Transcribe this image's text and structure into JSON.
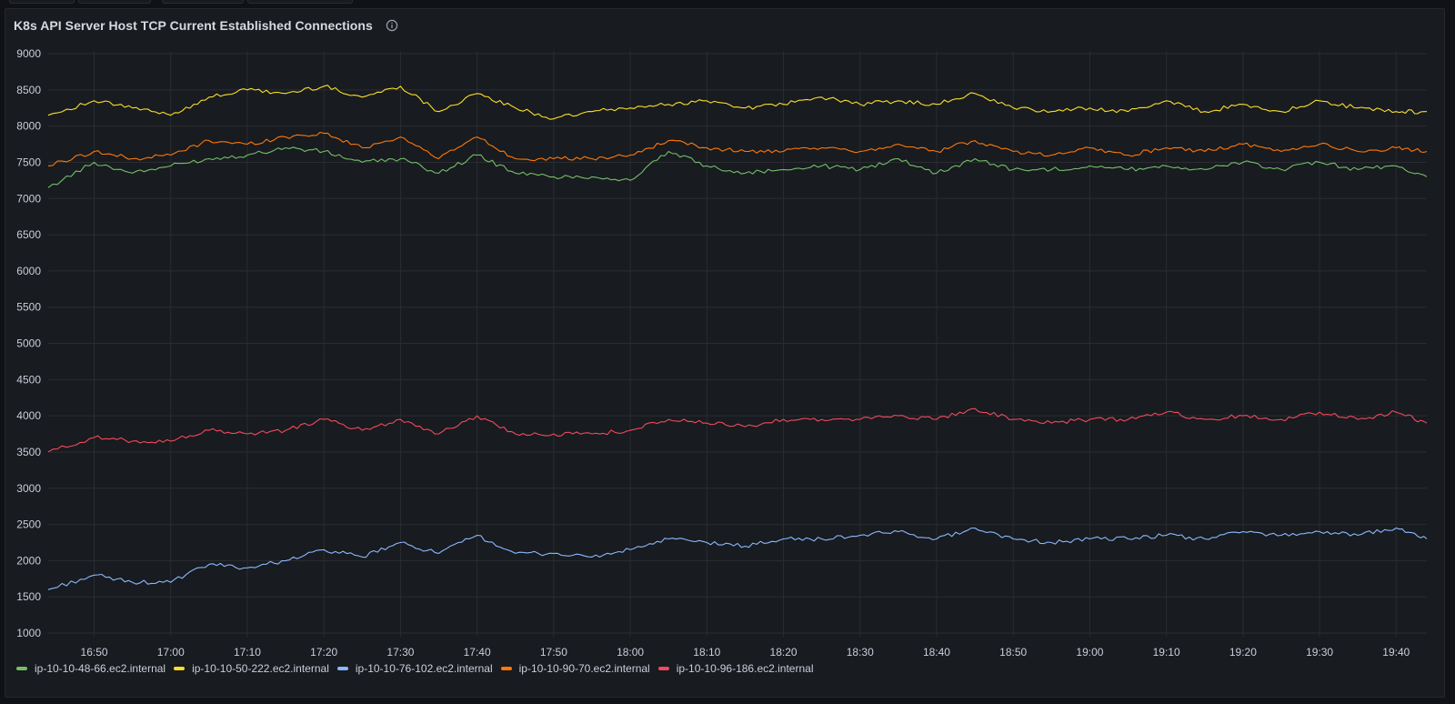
{
  "panel": {
    "title": "K8s API Server Host TCP Current Established Connections",
    "info_icon": "info-icon"
  },
  "chart_data": {
    "type": "line",
    "title": "K8s API Server Host TCP Current Established Connections",
    "xlabel": "",
    "ylabel": "",
    "x_range": [
      "16:44",
      "19:44"
    ],
    "ylim": [
      1000,
      9000
    ],
    "grid": true,
    "legend_position": "bottom-left",
    "yticks": [
      "1000",
      "1500",
      "2000",
      "2500",
      "3000",
      "3500",
      "4000",
      "4500",
      "5000",
      "5500",
      "6000",
      "6500",
      "7000",
      "7500",
      "8000",
      "8500",
      "9000"
    ],
    "xticks": [
      "16:50",
      "17:00",
      "17:10",
      "17:20",
      "17:30",
      "17:40",
      "17:50",
      "18:00",
      "18:10",
      "18:20",
      "18:30",
      "18:40",
      "18:50",
      "19:00",
      "19:10",
      "19:20",
      "19:30",
      "19:40"
    ],
    "x": [
      "16:44",
      "16:50",
      "16:55",
      "17:00",
      "17:05",
      "17:10",
      "17:15",
      "17:20",
      "17:25",
      "17:30",
      "17:35",
      "17:40",
      "17:45",
      "17:50",
      "17:55",
      "18:00",
      "18:05",
      "18:10",
      "18:15",
      "18:20",
      "18:25",
      "18:30",
      "18:35",
      "18:40",
      "18:45",
      "18:50",
      "18:55",
      "19:00",
      "19:05",
      "19:10",
      "19:15",
      "19:20",
      "19:25",
      "19:30",
      "19:35",
      "19:40",
      "19:44"
    ],
    "series": [
      {
        "name": "ip-10-10-48-66.ec2.internal",
        "color": "#73bf69",
        "values": [
          7150,
          7500,
          7350,
          7450,
          7550,
          7600,
          7700,
          7650,
          7500,
          7550,
          7350,
          7600,
          7350,
          7300,
          7300,
          7250,
          7650,
          7450,
          7350,
          7400,
          7450,
          7400,
          7550,
          7350,
          7550,
          7400,
          7400,
          7450,
          7400,
          7450,
          7400,
          7500,
          7400,
          7500,
          7400,
          7450,
          7300
        ]
      },
      {
        "name": "ip-10-10-50-222.ec2.internal",
        "color": "#fade2a",
        "values": [
          8150,
          8350,
          8250,
          8150,
          8400,
          8500,
          8450,
          8550,
          8400,
          8550,
          8200,
          8450,
          8250,
          8100,
          8200,
          8250,
          8300,
          8350,
          8250,
          8300,
          8400,
          8300,
          8350,
          8300,
          8450,
          8250,
          8200,
          8250,
          8200,
          8350,
          8200,
          8300,
          8200,
          8350,
          8250,
          8200,
          8200
        ]
      },
      {
        "name": "ip-10-10-76-102.ec2.internal",
        "color": "#8ab8ff",
        "values": [
          1600,
          1800,
          1700,
          1700,
          1950,
          1900,
          2000,
          2150,
          2050,
          2250,
          2100,
          2350,
          2100,
          2100,
          2050,
          2150,
          2300,
          2250,
          2200,
          2300,
          2300,
          2350,
          2400,
          2300,
          2450,
          2300,
          2250,
          2300,
          2300,
          2350,
          2300,
          2400,
          2350,
          2400,
          2350,
          2450,
          2300
        ]
      },
      {
        "name": "ip-10-10-90-70.ec2.internal",
        "color": "#ff780a",
        "values": [
          7450,
          7650,
          7550,
          7600,
          7800,
          7750,
          7850,
          7900,
          7700,
          7850,
          7550,
          7850,
          7550,
          7550,
          7550,
          7600,
          7800,
          7700,
          7650,
          7650,
          7700,
          7650,
          7750,
          7650,
          7800,
          7650,
          7600,
          7700,
          7600,
          7700,
          7650,
          7750,
          7650,
          7750,
          7650,
          7700,
          7650
        ]
      },
      {
        "name": "ip-10-10-96-186.ec2.internal",
        "color": "#f2495c",
        "values": [
          3500,
          3700,
          3650,
          3650,
          3800,
          3750,
          3800,
          3950,
          3800,
          3950,
          3750,
          4000,
          3750,
          3750,
          3750,
          3800,
          3950,
          3900,
          3850,
          3950,
          3950,
          3950,
          4000,
          3950,
          4100,
          3950,
          3900,
          3950,
          3950,
          4050,
          3950,
          4000,
          3950,
          4050,
          3950,
          4050,
          3900
        ]
      }
    ]
  }
}
